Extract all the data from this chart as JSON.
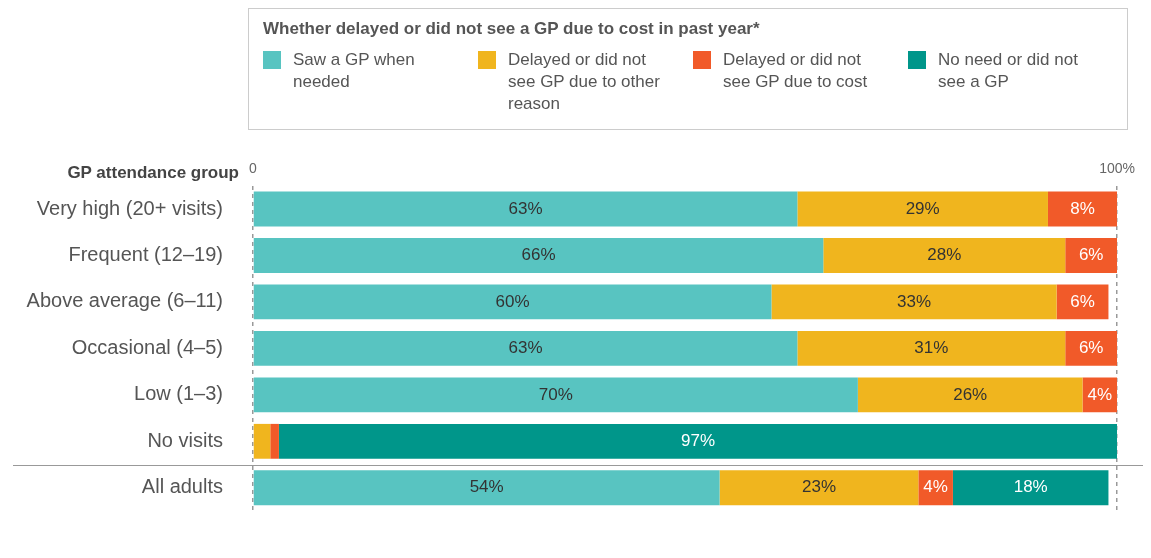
{
  "chart_data": {
    "type": "bar",
    "orientation": "horizontal",
    "stacked": true,
    "ylabel": "GP attendance group",
    "legend_title": "Whether delayed or did not see a GP due to cost in past year*",
    "legend": "top",
    "categories": [
      "Very high (20+ visits)",
      "Frequent (12–19)",
      "Above average (6–11)",
      "Occasional (4–5)",
      "Low (1–3)",
      "No visits",
      "All adults"
    ],
    "series": [
      {
        "name": "Saw a GP when needed",
        "color": "#58c4c1",
        "values": [
          63,
          66,
          60,
          63,
          70,
          null,
          54
        ],
        "value_labels": [
          "63%",
          "66%",
          "60%",
          "63%",
          "70%",
          null,
          "54%"
        ]
      },
      {
        "name": "Delayed or did not see GP due to other reason",
        "color": "#f0b51e",
        "values": [
          29,
          28,
          33,
          31,
          26,
          2,
          23
        ],
        "value_labels": [
          "29%",
          "28%",
          "33%",
          "31%",
          "26%",
          null,
          "23%"
        ]
      },
      {
        "name": "Delayed or did not see GP due to cost",
        "color": "#f15a29",
        "values": [
          8,
          6,
          6,
          6,
          4,
          1,
          4
        ],
        "value_labels": [
          "8%",
          "6%",
          "6%",
          "6%",
          "4%",
          null,
          "4%"
        ]
      },
      {
        "name": "No need or did not see a GP",
        "color": "#00968a",
        "values": [
          null,
          null,
          null,
          null,
          null,
          97,
          18
        ],
        "value_labels": [
          null,
          null,
          null,
          null,
          null,
          "97%",
          "18%"
        ]
      }
    ],
    "xlim": [
      0,
      100
    ],
    "xticks": [
      {
        "value": 0,
        "label": "0"
      },
      {
        "value": 100,
        "label": "100%"
      }
    ],
    "grid": "x"
  }
}
